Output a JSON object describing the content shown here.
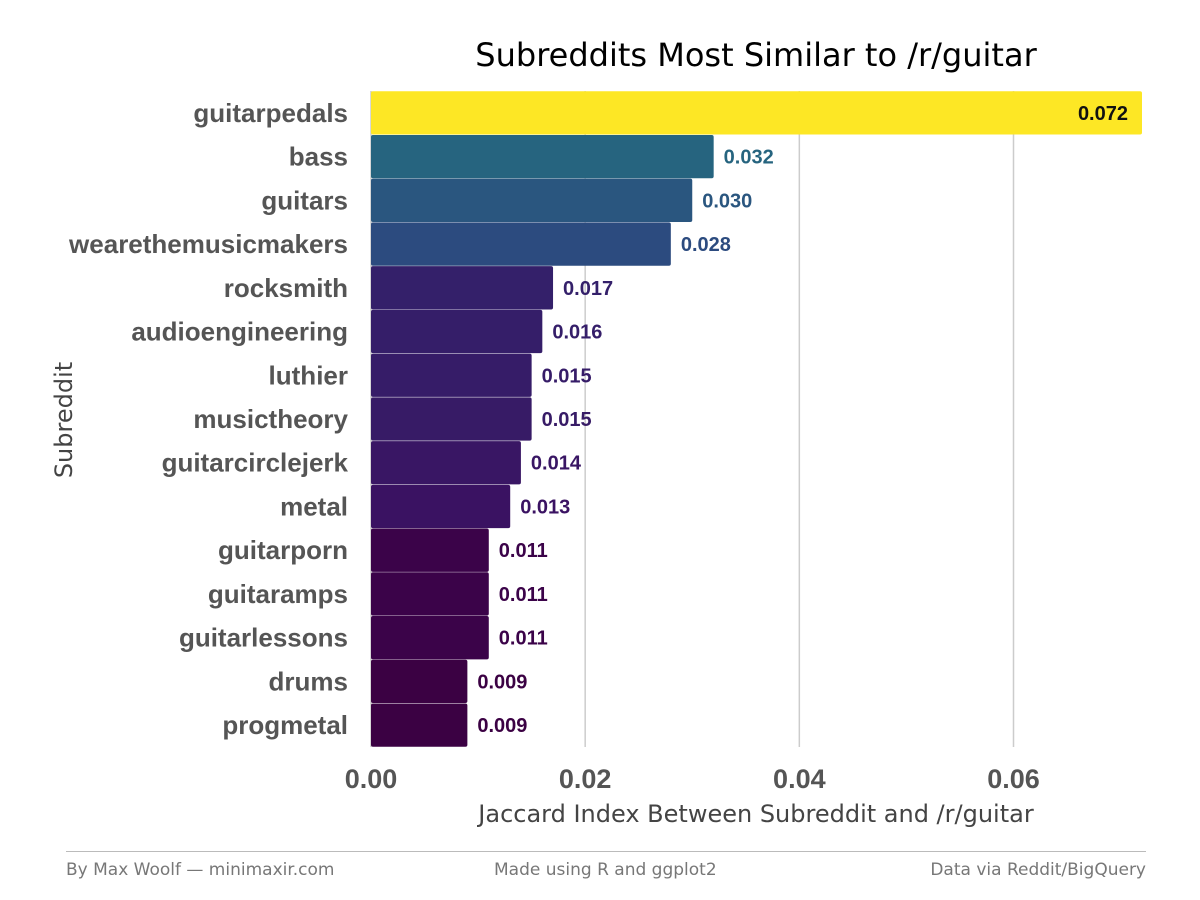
{
  "chart_data": {
    "type": "bar",
    "orientation": "horizontal",
    "title": "Subreddits Most Similar to /r/guitar",
    "xlabel": "Jaccard Index Between Subreddit and /r/guitar",
    "ylabel": "Subreddit",
    "categories": [
      "guitarpedals",
      "bass",
      "guitars",
      "wearethemusicmakers",
      "rocksmith",
      "audioengineering",
      "luthier",
      "musictheory",
      "guitarcirclejerk",
      "metal",
      "guitarporn",
      "guitaramps",
      "guitarlessons",
      "drums",
      "progmetal"
    ],
    "values": [
      0.072,
      0.032,
      0.03,
      0.028,
      0.017,
      0.016,
      0.015,
      0.015,
      0.014,
      0.013,
      0.011,
      0.011,
      0.011,
      0.009,
      0.009
    ],
    "value_labels": [
      "0.072",
      "0.032",
      "0.030",
      "0.028",
      "0.017",
      "0.016",
      "0.015",
      "0.015",
      "0.014",
      "0.013",
      "0.011",
      "0.011",
      "0.011",
      "0.009",
      "0.009"
    ],
    "bar_colors": [
      "#FDE725",
      "#26647F",
      "#2A567F",
      "#2C4B7F",
      "#34206A",
      "#351E69",
      "#361C68",
      "#371B66",
      "#391664",
      "#3A1262",
      "#3B0349",
      "#3B0349",
      "#3B0349",
      "#3B0143",
      "#3B0143"
    ],
    "label_colors": [
      "#111111",
      "#26647F",
      "#2A567F",
      "#2C4B7F",
      "#34206A",
      "#351E69",
      "#361C68",
      "#371B66",
      "#391664",
      "#3A1262",
      "#3B0349",
      "#3B0349",
      "#3B0349",
      "#3B0143",
      "#3B0143"
    ],
    "color_scale": "viridis",
    "x_ticks": [
      0,
      0.02,
      0.04,
      0.06
    ],
    "x_tick_labels": [
      "0.00",
      "0.02",
      "0.04",
      "0.06"
    ],
    "xlim": [
      0,
      0.072
    ],
    "grid": "vertical major lines",
    "legend": "none"
  },
  "footer": {
    "left": "By Max Woolf — minimaxir.com",
    "center": "Made using R and ggplot2",
    "right": "Data via Reddit/BigQuery"
  }
}
